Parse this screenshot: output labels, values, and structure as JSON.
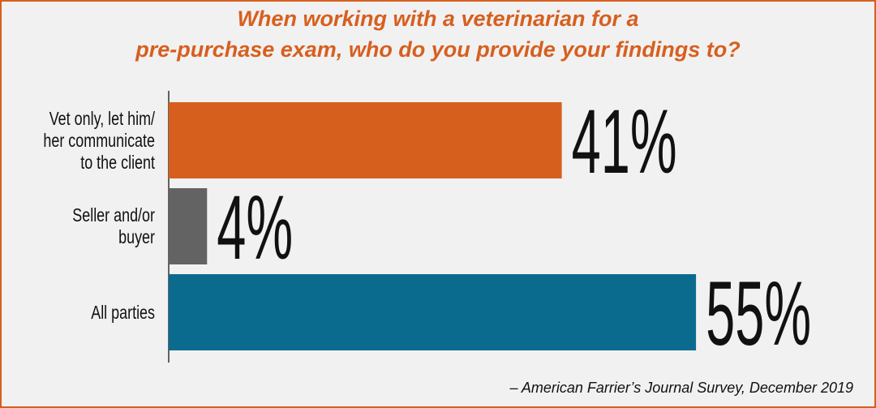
{
  "chart_data": {
    "type": "barh",
    "title": [
      "When working with a veterinarian for a",
      "pre-purchase exam, who do you provide your findings to?"
    ],
    "categories": [
      "Vet only, let him/\nher communicate\nto the client",
      "Seller and/or\nbuyer",
      "All parties"
    ],
    "values": [
      41,
      4,
      55
    ],
    "value_labels": [
      "41%",
      "4%",
      "55%"
    ],
    "colors": [
      "#d75f1e",
      "#636363",
      "#0b6b8f"
    ],
    "source": "–  American Farrier’s Journal Survey,  December 2019"
  }
}
